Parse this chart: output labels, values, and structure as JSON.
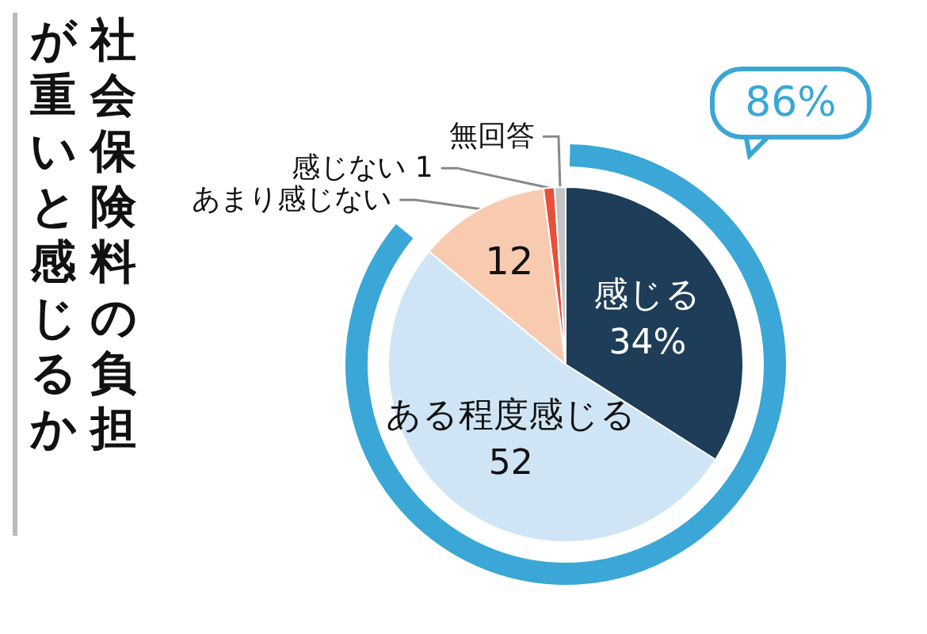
{
  "chart_data": {
    "type": "pie",
    "title": "社会保険料の負担が重いと感じるか",
    "categories": [
      "感じる",
      "ある程度感じる",
      "あまり感じない",
      "感じない",
      "無回答"
    ],
    "values": [
      34,
      52,
      12,
      1,
      1
    ],
    "colors": [
      "#1d3d58",
      "#cfe5f5",
      "#f8cbb0",
      "#e8503a",
      "#c4c4c4"
    ],
    "value_labels": [
      "34%",
      "52",
      "12",
      "1",
      null
    ],
    "annotations": [
      "86%"
    ]
  }
}
